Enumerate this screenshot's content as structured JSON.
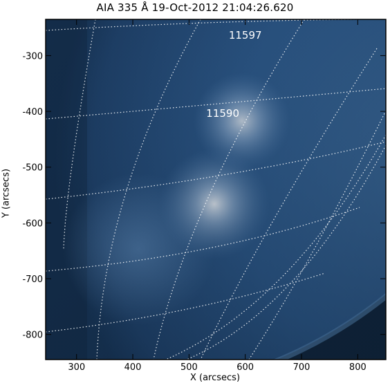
{
  "title": "AIA 335 Å 19-Oct-2012 21:04:26.620",
  "x_axis": {
    "label": "X (arcsecs)",
    "range": [
      245,
      850
    ],
    "ticks": [
      {
        "value": 300,
        "label": "300"
      },
      {
        "value": 400,
        "label": "400"
      },
      {
        "value": 500,
        "label": "500"
      },
      {
        "value": 600,
        "label": "600"
      },
      {
        "value": 700,
        "label": "700"
      },
      {
        "value": 800,
        "label": "800"
      }
    ]
  },
  "y_axis": {
    "label": "Y (arcsecs)",
    "range": [
      -845,
      -235
    ],
    "ticks": [
      {
        "value": -300,
        "label": "-300"
      },
      {
        "value": -400,
        "label": "-400"
      },
      {
        "value": -500,
        "label": "-500"
      },
      {
        "value": -600,
        "label": "-600"
      },
      {
        "value": -700,
        "label": "-700"
      },
      {
        "value": -800,
        "label": "-800"
      }
    ]
  },
  "active_regions": [
    {
      "number": "11597",
      "x": 600,
      "y": -270
    },
    {
      "number": "11590",
      "x": 560,
      "y": -410
    }
  ],
  "image": {
    "colormap": "blue",
    "limb_visible": "bottom-right"
  }
}
